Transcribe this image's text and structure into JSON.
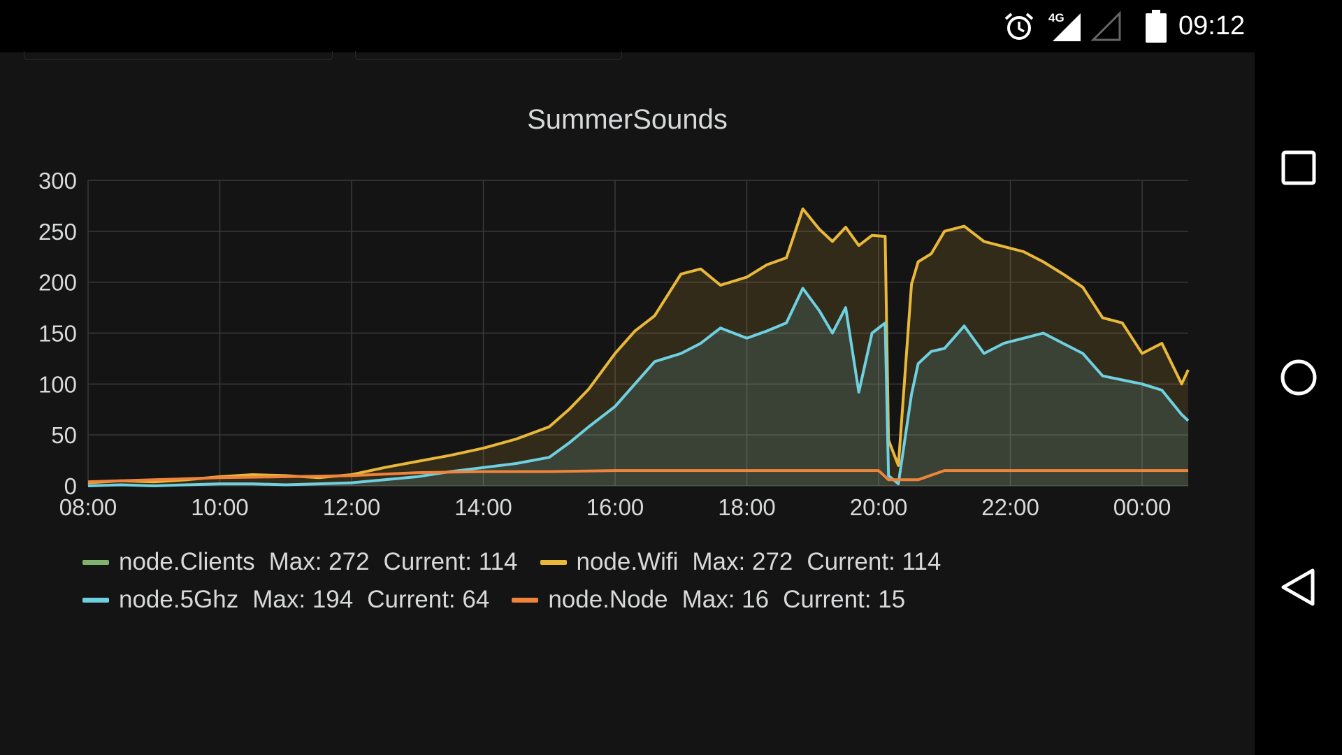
{
  "status_bar": {
    "time": "09:12",
    "network": "4G",
    "icons": [
      "alarm-icon",
      "signal-4g-icon",
      "signal-empty-icon",
      "battery-icon"
    ]
  },
  "panel": {
    "title": "SummerSounds"
  },
  "nav_bar": {
    "icons": [
      "recents-square-icon",
      "home-circle-icon",
      "back-triangle-icon"
    ]
  },
  "legend": [
    {
      "name": "node.Clients",
      "max_label": "Max: 272",
      "current_label": "Current: 114",
      "color": "#7eb26d"
    },
    {
      "name": "node.Wifi",
      "max_label": "Max: 272",
      "current_label": "Current: 114",
      "color": "#eab839"
    },
    {
      "name": "node.5Ghz",
      "max_label": "Max: 194",
      "current_label": "Current: 64",
      "color": "#6ed0e0"
    },
    {
      "name": "node.Node",
      "max_label": "Max: 16",
      "current_label": "Current: 15",
      "color": "#ef843c"
    }
  ],
  "chart_data": {
    "type": "area",
    "title": "SummerSounds",
    "x_unit": "hours (08:00 = 8, 00:00 next day = 24)",
    "x_ticks": [
      "08:00",
      "10:00",
      "12:00",
      "14:00",
      "16:00",
      "18:00",
      "20:00",
      "22:00",
      "00:00"
    ],
    "y_ticks": [
      "0",
      "50",
      "100",
      "150",
      "200",
      "250",
      "300"
    ],
    "xlim": [
      8,
      24.7
    ],
    "ylim": [
      0,
      300
    ],
    "grid": true,
    "legend_position": "bottom",
    "series": [
      {
        "name": "node.Wifi",
        "color": "#eab839",
        "fill": true,
        "x": [
          8,
          8.5,
          9,
          9.5,
          10,
          10.5,
          11,
          11.5,
          12,
          12.5,
          13,
          13.5,
          14,
          14.5,
          15,
          15.3,
          15.6,
          16,
          16.3,
          16.6,
          17,
          17.3,
          17.6,
          18,
          18.3,
          18.6,
          18.85,
          19.1,
          19.3,
          19.5,
          19.7,
          19.9,
          20.1,
          20.15,
          20.3,
          20.5,
          20.6,
          20.8,
          21,
          21.3,
          21.6,
          21.9,
          22.2,
          22.5,
          22.8,
          23.1,
          23.4,
          23.7,
          24,
          24.3,
          24.6,
          24.7
        ],
        "values": [
          3,
          5,
          4,
          6,
          9,
          11,
          10,
          8,
          11,
          18,
          24,
          30,
          37,
          46,
          58,
          75,
          95,
          130,
          152,
          167,
          208,
          213,
          197,
          205,
          217,
          224,
          272,
          252,
          240,
          254,
          236,
          246,
          245,
          45,
          20,
          198,
          220,
          228,
          250,
          255,
          240,
          235,
          230,
          220,
          208,
          195,
          165,
          160,
          130,
          140,
          100,
          114
        ]
      },
      {
        "name": "node.5Ghz",
        "color": "#6ed0e0",
        "fill": true,
        "x": [
          8,
          8.5,
          9,
          9.5,
          10,
          10.5,
          11,
          11.5,
          12,
          12.5,
          13,
          13.5,
          14,
          14.5,
          15,
          15.3,
          15.6,
          16,
          16.3,
          16.6,
          17,
          17.3,
          17.6,
          18,
          18.3,
          18.6,
          18.85,
          19.1,
          19.3,
          19.5,
          19.7,
          19.9,
          20.1,
          20.15,
          20.3,
          20.5,
          20.6,
          20.8,
          21,
          21.3,
          21.6,
          21.9,
          22.2,
          22.5,
          22.8,
          23.1,
          23.4,
          23.7,
          24,
          24.3,
          24.6,
          24.7
        ],
        "values": [
          0,
          1,
          0,
          1,
          2,
          2,
          1,
          2,
          3,
          6,
          9,
          14,
          18,
          22,
          28,
          42,
          58,
          78,
          100,
          122,
          130,
          140,
          155,
          145,
          152,
          160,
          194,
          172,
          150,
          175,
          92,
          150,
          160,
          10,
          2,
          90,
          120,
          132,
          135,
          157,
          130,
          140,
          145,
          150,
          140,
          130,
          108,
          104,
          100,
          94,
          70,
          64
        ]
      },
      {
        "name": "node.Node",
        "color": "#ef843c",
        "fill": false,
        "x": [
          8,
          9,
          10,
          11,
          12,
          13,
          14,
          15,
          16,
          17,
          18,
          19,
          20,
          20.15,
          20.6,
          21,
          22,
          23,
          24,
          24.7
        ],
        "values": [
          4,
          6,
          8,
          9,
          10,
          13,
          14,
          14,
          15,
          15,
          15,
          15,
          15,
          6,
          6,
          15,
          15,
          15,
          15,
          15
        ]
      }
    ]
  }
}
